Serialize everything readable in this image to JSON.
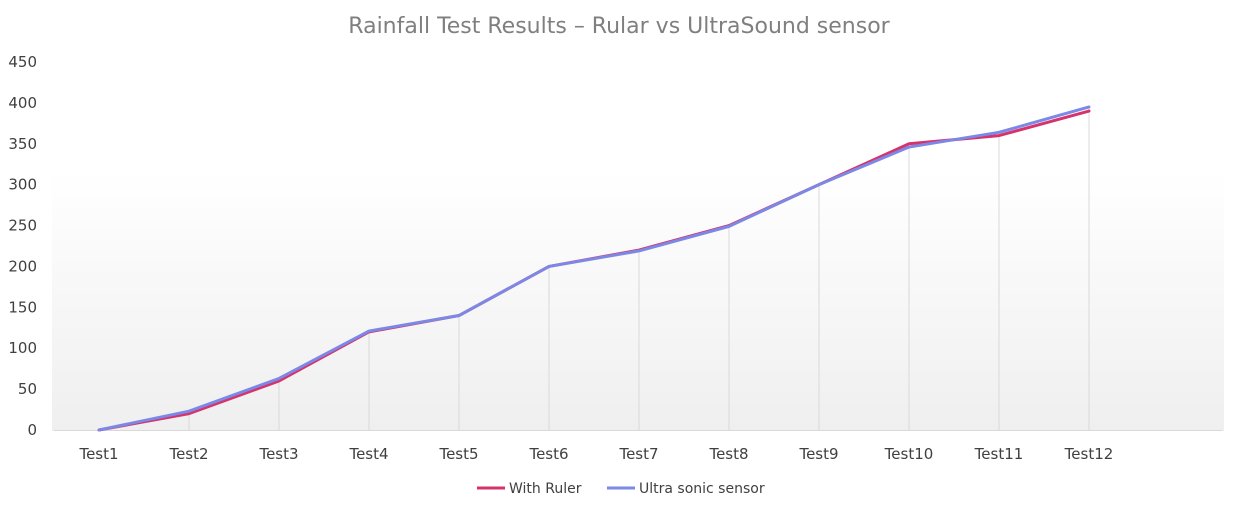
{
  "chart_data": {
    "type": "line",
    "title": "Rainfall Test Results – Rular vs UltraSound sensor",
    "xlabel": "",
    "ylabel": "",
    "categories": [
      "Test1",
      "Test2",
      "Test3",
      "Test4",
      "Test5",
      "Test6",
      "Test7",
      "Test8",
      "Test9",
      "Test10",
      "Test11",
      "Test12"
    ],
    "ylim": [
      0,
      450
    ],
    "yticks": [
      0,
      50,
      100,
      150,
      200,
      250,
      300,
      350,
      400,
      450
    ],
    "grid": "vertical",
    "legend_position": "bottom",
    "series": [
      {
        "name": "With Ruler",
        "color": "#d6336c",
        "values": [
          0,
          20,
          60,
          120,
          140,
          200,
          220,
          250,
          300,
          350,
          360,
          390
        ]
      },
      {
        "name": "Ultra sonic sensor",
        "color": "#7b88e6",
        "values": [
          0,
          23,
          63,
          121,
          140,
          200,
          219,
          249,
          300,
          346,
          364,
          395
        ]
      }
    ]
  }
}
